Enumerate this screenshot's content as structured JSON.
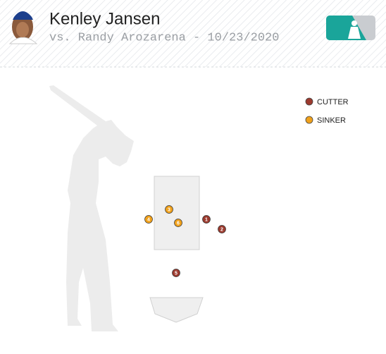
{
  "header": {
    "title": "Kenley Jansen",
    "subtitle": "vs. Randy Arozarena - 10/23/2020"
  },
  "legend": [
    {
      "label": "CUTTER",
      "color": "#9c3a2e"
    },
    {
      "label": "SINKER",
      "color": "#f0a11c"
    }
  ],
  "pitches": [
    {
      "number": 1,
      "pitch_type": "CUTTER"
    },
    {
      "number": 2,
      "pitch_type": "CUTTER"
    },
    {
      "number": 3,
      "pitch_type": "SINKER"
    },
    {
      "number": 4,
      "pitch_type": "SINKER"
    },
    {
      "number": 5,
      "pitch_type": "CUTTER"
    },
    {
      "number": 6,
      "pitch_type": "SINKER"
    }
  ]
}
